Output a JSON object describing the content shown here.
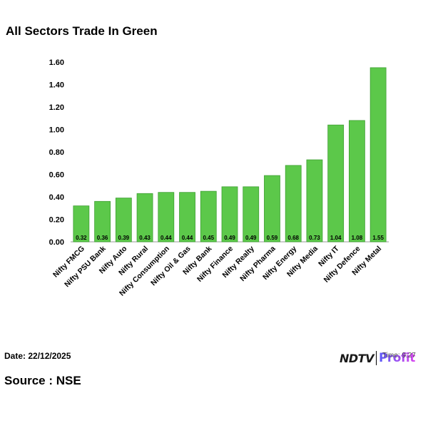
{
  "title": "All Sectors Trade In Green",
  "footer": {
    "date_label": "Date: 22/12/2025",
    "source_label": "Source : NSE",
    "time_label": "Time: 9:27"
  },
  "brand": {
    "name": "NDTV",
    "sub": "Profit",
    "main_color": "#1a1a1a",
    "sub_color_start": "#5b5cf6",
    "sub_color_end": "#d946ef"
  },
  "chart_data": {
    "type": "bar",
    "title": "All Sectors Trade In Green",
    "categories": [
      "Nifty FMCG",
      "Nifty PSU Bank",
      "Nifty Auto",
      "Nifty Rural",
      "Nifty Consumption",
      "Nifty Oil & Gas",
      "Nifty Bank",
      "Nifty Finance",
      "Nifty Realty",
      "Nifty Pharma",
      "Nifty Energy",
      "Nifty Media",
      "Nifty IT",
      "Nifty Defence",
      "Nifty Metal"
    ],
    "values": [
      0.32,
      0.36,
      0.39,
      0.43,
      0.44,
      0.44,
      0.45,
      0.49,
      0.49,
      0.59,
      0.68,
      0.73,
      1.04,
      1.08,
      1.55
    ],
    "value_labels": [
      "0.32",
      "0.36",
      "0.39",
      "0.43",
      "0.44",
      "0.44",
      "0.45",
      "0.49",
      "0.49",
      "0.59",
      "0.68",
      "0.73",
      "1.04",
      "1.08",
      "1.55"
    ],
    "yticks": [
      0,
      0.2,
      0.4,
      0.6,
      0.8,
      1.0,
      1.2,
      1.4,
      1.6
    ],
    "ytick_labels": [
      "0.00",
      "0.20",
      "0.40",
      "0.60",
      "0.80",
      "1.00",
      "1.20",
      "1.40",
      "1.60"
    ],
    "ylim": [
      0,
      1.6
    ],
    "xlabel": "",
    "ylabel": "",
    "grid": false,
    "bar_color": "#5cc84a",
    "bar_edge_color": "#3f9f33"
  }
}
